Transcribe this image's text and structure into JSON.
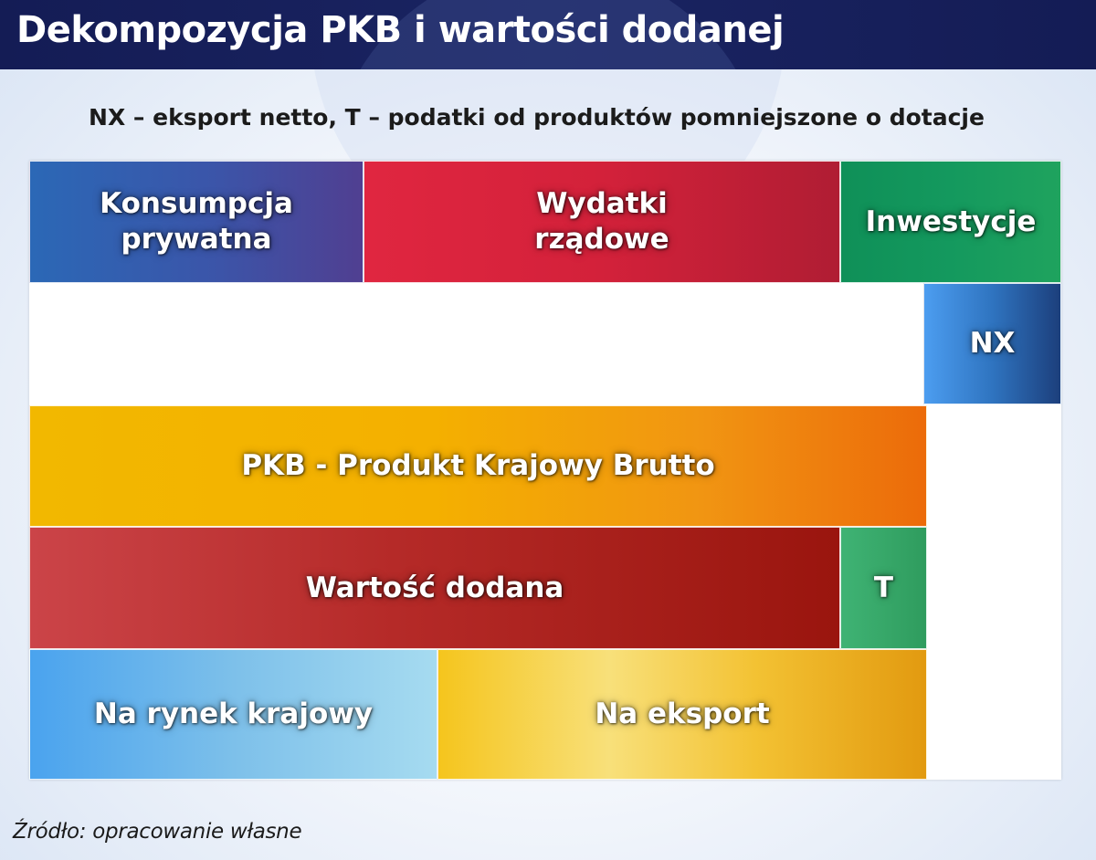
{
  "header": {
    "title": "Dekompozycja PKB i wartości dodanej"
  },
  "subtitle": "NX – eksport netto, T – podatki od produktów pomniejszone o dotacje",
  "blocks": {
    "konsumpcja": "Konsumpcja prywatna",
    "wydatki": "Wydatki rządowe",
    "inwestycje": "Inwestycje",
    "nx": "NX",
    "pkb": "PKB - Produkt Krajowy Brutto",
    "wartosc": "Wartość dodana",
    "t": "T",
    "krajowy": "Na rynek krajowy",
    "eksport": "Na eksport"
  },
  "source": "Źródło: opracowanie własne",
  "colors": {
    "header_bg": "#1a2462",
    "konsumpcja": "#3b55a9",
    "wydatki": "#d3213a",
    "inwestycje": "#14995e",
    "nx": "#2f74c0",
    "pkb": "#f4b000",
    "wartosc": "#b52a28",
    "t": "#2f9c5e",
    "krajowy": "#7dc0ea",
    "eksport": "#f3c233"
  }
}
